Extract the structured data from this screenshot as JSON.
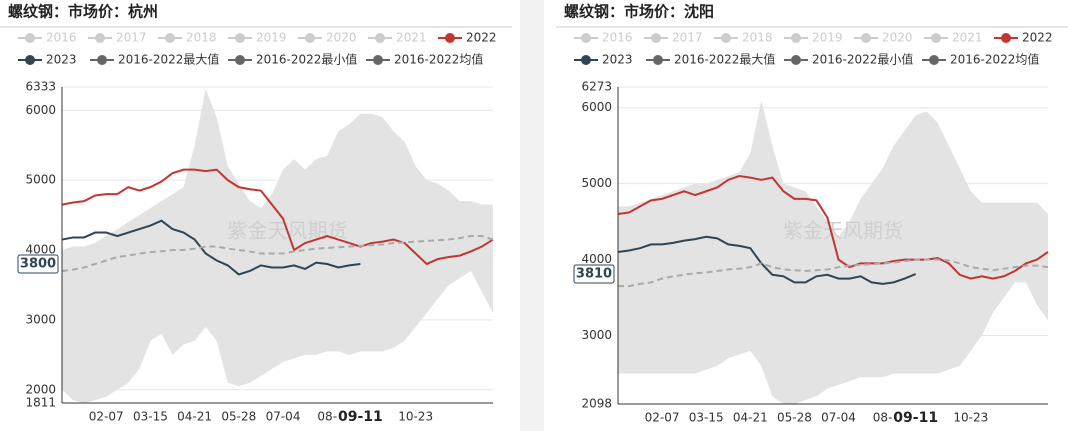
{
  "chart_data": [
    {
      "type": "line",
      "title": "螺纹钢：市场价：杭州",
      "watermark": "紫金天风期货",
      "inactive_series": [
        "2016",
        "2017",
        "2018",
        "2019",
        "2020",
        "2021"
      ],
      "categories": [
        null,
        null,
        null,
        null,
        "02-07",
        null,
        null,
        null,
        "03-15",
        null,
        null,
        null,
        "04-21",
        null,
        null,
        null,
        "05-28",
        null,
        null,
        null,
        "07-04",
        null,
        null,
        null,
        "08-",
        null,
        null,
        null,
        null,
        null,
        null,
        null,
        "10-23",
        null,
        null,
        null,
        null,
        null,
        null,
        null
      ],
      "current_date": "09-11",
      "current_value": 3800,
      "ylim": [
        1811,
        6333
      ],
      "yticks": [
        1811,
        2000,
        3000,
        4000,
        5000,
        6000,
        6333
      ],
      "grid": true,
      "band_color": "#e3e3e3",
      "series": [
        {
          "name": "2022",
          "color": "#c23531",
          "style": "solid",
          "values": [
            4650,
            4680,
            4700,
            4780,
            4800,
            4800,
            4900,
            4850,
            4900,
            4980,
            5100,
            5150,
            5150,
            5130,
            5150,
            5000,
            4900,
            4870,
            4850,
            4650,
            4450,
            4000,
            4100,
            4150,
            4200,
            4150,
            4100,
            4050,
            4100,
            4120,
            4150,
            4100,
            3950,
            3800,
            3870,
            3900,
            3920,
            3980,
            4050,
            4150
          ]
        },
        {
          "name": "2023",
          "color": "#2f4554",
          "style": "solid",
          "values": [
            4150,
            4180,
            4180,
            4250,
            4250,
            4200,
            4250,
            4300,
            4350,
            4420,
            4300,
            4250,
            4150,
            3950,
            3850,
            3780,
            3650,
            3700,
            3780,
            3750,
            3750,
            3780,
            3730,
            3820,
            3800,
            3750,
            3780,
            3800,
            null,
            null,
            null,
            null,
            null,
            null,
            null,
            null,
            null,
            null,
            null,
            null
          ]
        },
        {
          "name": "2016-2022最大值",
          "color": "#666666",
          "style": "band-upper",
          "values": [
            4000,
            4050,
            4050,
            4100,
            4200,
            4300,
            4400,
            4500,
            4600,
            4700,
            4800,
            4900,
            5500,
            6300,
            5900,
            5200,
            4950,
            4700,
            4600,
            4800,
            5150,
            5300,
            5150,
            5300,
            5350,
            5700,
            5800,
            5950,
            5950,
            5900,
            5700,
            5550,
            5200,
            5000,
            4950,
            4850,
            4700,
            4700,
            4650,
            4650
          ]
        },
        {
          "name": "2016-2022最小值",
          "color": "#666666",
          "style": "band-lower",
          "values": [
            2000,
            1850,
            1811,
            1850,
            1900,
            2000,
            2100,
            2300,
            2700,
            2800,
            2500,
            2650,
            2700,
            2900,
            2700,
            2100,
            2050,
            2100,
            2200,
            2300,
            2400,
            2450,
            2500,
            2500,
            2550,
            2550,
            2500,
            2550,
            2550,
            2550,
            2600,
            2700,
            2900,
            3100,
            3300,
            3500,
            3600,
            3700,
            3400,
            3100
          ]
        },
        {
          "name": "2016-2022均值",
          "color": "#666666",
          "style": "dashed",
          "values": [
            3700,
            3720,
            3750,
            3800,
            3850,
            3900,
            3920,
            3950,
            3970,
            3980,
            4000,
            4000,
            4020,
            4050,
            4050,
            4020,
            4000,
            3980,
            3950,
            3950,
            3950,
            3980,
            4000,
            4020,
            4030,
            4040,
            4050,
            4060,
            4070,
            4080,
            4100,
            4110,
            4120,
            4130,
            4140,
            4150,
            4170,
            4200,
            4200,
            4150
          ]
        }
      ]
    },
    {
      "type": "line",
      "title": "螺纹钢：市场价：沈阳",
      "watermark": "紫金天风期货",
      "inactive_series": [
        "2016",
        "2017",
        "2018",
        "2019",
        "2020",
        "2021"
      ],
      "categories": [
        null,
        null,
        null,
        null,
        "02-07",
        null,
        null,
        null,
        "03-15",
        null,
        null,
        null,
        "04-21",
        null,
        null,
        null,
        "05-28",
        null,
        null,
        null,
        "07-04",
        null,
        null,
        null,
        "08-",
        null,
        null,
        null,
        null,
        null,
        null,
        null,
        "10-23",
        null,
        null,
        null,
        null,
        null,
        null,
        null
      ],
      "current_date": "09-11",
      "current_value": 3810,
      "ylim": [
        2098,
        6273
      ],
      "yticks": [
        2098,
        3000,
        4000,
        5000,
        6000,
        6273
      ],
      "grid": true,
      "band_color": "#e3e3e3",
      "series": [
        {
          "name": "2022",
          "color": "#c23531",
          "style": "solid",
          "values": [
            4600,
            4620,
            4700,
            4780,
            4800,
            4850,
            4900,
            4850,
            4900,
            4950,
            5050,
            5100,
            5080,
            5050,
            5080,
            4900,
            4800,
            4800,
            4780,
            4550,
            4000,
            3900,
            3950,
            3950,
            3950,
            3980,
            4000,
            4000,
            4000,
            4020,
            3950,
            3800,
            3750,
            3780,
            3750,
            3780,
            3850,
            3950,
            4000,
            4100
          ]
        },
        {
          "name": "2023",
          "color": "#2f4554",
          "style": "solid",
          "values": [
            4100,
            4120,
            4150,
            4200,
            4200,
            4220,
            4250,
            4270,
            4300,
            4280,
            4200,
            4180,
            4150,
            3950,
            3800,
            3780,
            3700,
            3700,
            3780,
            3800,
            3750,
            3750,
            3780,
            3700,
            3680,
            3700,
            3750,
            3810,
            null,
            null,
            null,
            null,
            null,
            null,
            null,
            null,
            null,
            null,
            null,
            null
          ]
        },
        {
          "name": "2016-2022最大值",
          "color": "#666666",
          "style": "band-upper",
          "values": [
            4700,
            4700,
            4750,
            4800,
            4850,
            4900,
            4950,
            5000,
            5000,
            5050,
            5100,
            5150,
            5400,
            6100,
            5500,
            5000,
            4950,
            4900,
            4700,
            4500,
            4300,
            4500,
            4800,
            5000,
            5200,
            5500,
            5700,
            5900,
            5950,
            5800,
            5500,
            5200,
            4900,
            4750,
            4750,
            4750,
            4750,
            4750,
            4750,
            4600
          ]
        },
        {
          "name": "2016-2022最小值",
          "color": "#666666",
          "style": "band-lower",
          "values": [
            2500,
            2500,
            2500,
            2500,
            2500,
            2500,
            2500,
            2500,
            2550,
            2600,
            2700,
            2750,
            2800,
            2600,
            2200,
            2100,
            2098,
            2150,
            2200,
            2300,
            2350,
            2400,
            2450,
            2450,
            2450,
            2500,
            2500,
            2500,
            2500,
            2500,
            2550,
            2600,
            2800,
            3000,
            3300,
            3500,
            3700,
            3700,
            3400,
            3200
          ]
        },
        {
          "name": "2016-2022均值",
          "color": "#666666",
          "style": "dashed",
          "values": [
            3650,
            3650,
            3680,
            3700,
            3750,
            3780,
            3800,
            3820,
            3830,
            3850,
            3870,
            3880,
            3900,
            3950,
            3900,
            3870,
            3860,
            3850,
            3860,
            3870,
            3900,
            3920,
            3930,
            3940,
            3950,
            3960,
            3980,
            4000,
            4000,
            4000,
            3990,
            3950,
            3900,
            3880,
            3860,
            3880,
            3900,
            3920,
            3920,
            3900
          ]
        }
      ]
    }
  ]
}
